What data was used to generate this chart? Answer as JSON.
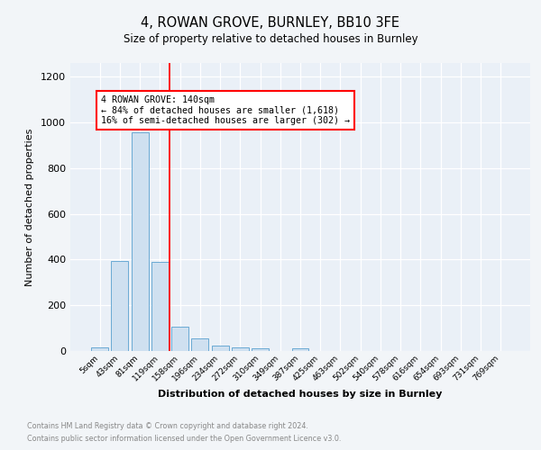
{
  "title": "4, ROWAN GROVE, BURNLEY, BB10 3FE",
  "subtitle": "Size of property relative to detached houses in Burnley",
  "xlabel": "Distribution of detached houses by size in Burnley",
  "ylabel": "Number of detached properties",
  "footnote1": "Contains HM Land Registry data © Crown copyright and database right 2024.",
  "footnote2": "Contains public sector information licensed under the Open Government Licence v3.0.",
  "bin_labels": [
    "5sqm",
    "43sqm",
    "81sqm",
    "119sqm",
    "158sqm",
    "196sqm",
    "234sqm",
    "272sqm",
    "310sqm",
    "349sqm",
    "387sqm",
    "425sqm",
    "463sqm",
    "502sqm",
    "540sqm",
    "578sqm",
    "616sqm",
    "654sqm",
    "693sqm",
    "731sqm",
    "769sqm"
  ],
  "bar_values": [
    15,
    395,
    955,
    390,
    105,
    55,
    25,
    15,
    13,
    0,
    13,
    0,
    0,
    0,
    0,
    0,
    0,
    0,
    0,
    0,
    0
  ],
  "bar_color": "#cfe0f0",
  "bar_edge_color": "#6aaad4",
  "red_line_x": 3.5,
  "annotation_text1": "4 ROWAN GROVE: 140sqm",
  "annotation_text2": "← 84% of detached houses are smaller (1,618)",
  "annotation_text3": "16% of semi-detached houses are larger (302) →",
  "ylim": [
    0,
    1260
  ],
  "yticks": [
    0,
    200,
    400,
    600,
    800,
    1000,
    1200
  ],
  "background_color": "#f2f5f8",
  "plot_bg_color": "#eaf0f7"
}
